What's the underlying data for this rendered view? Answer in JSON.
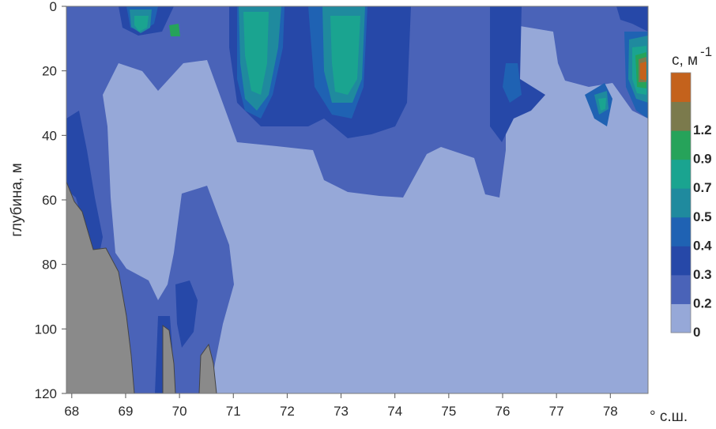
{
  "chart_data": {
    "type": "heatmap",
    "subtype": "filled-contour depth section",
    "xlabel": "° с.ш.",
    "ylabel": "глубина, м",
    "xlim": [
      67.9,
      78.7
    ],
    "ylim": [
      0,
      120
    ],
    "y_inverted": true,
    "grid": false,
    "x_ticks": [
      "68",
      "69",
      "70",
      "71",
      "72",
      "73",
      "74",
      "75",
      "76",
      "77",
      "78"
    ],
    "y_ticks": [
      "0",
      "20",
      "40",
      "60",
      "80",
      "100",
      "120"
    ],
    "colorbar": {
      "title": "c, м",
      "title_exponent": "-1",
      "position": "right",
      "levels": [
        {
          "label": "0",
          "color": "#96a8d8"
        },
        {
          "label": "0.2",
          "color": "#4a63b8"
        },
        {
          "label": "0.3",
          "color": "#2648a8"
        },
        {
          "label": "0.4",
          "color": "#1f62b3"
        },
        {
          "label": "0.5",
          "color": "#1f8a9e"
        },
        {
          "label": "0.7",
          "color": "#1aa490"
        },
        {
          "label": "0.9",
          "color": "#26a35a"
        },
        {
          "label": "1.2",
          "color": "#7b7a4c"
        },
        {
          "label": "",
          "color": "#c4621c"
        }
      ]
    },
    "bottom_color": "#8a8a8a"
  }
}
